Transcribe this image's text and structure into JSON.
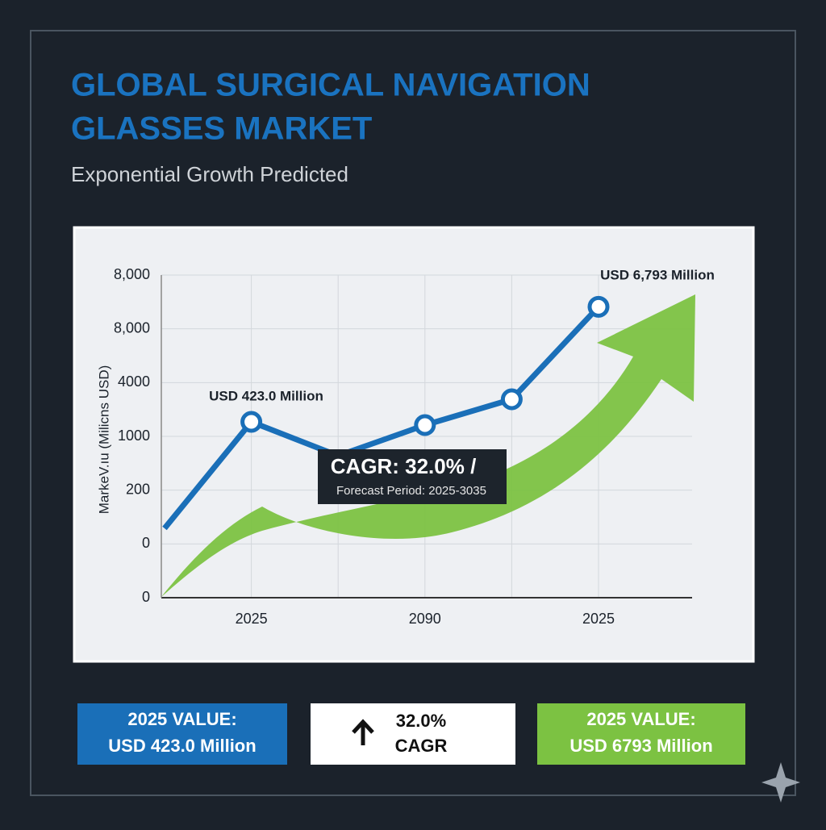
{
  "title_lines": [
    "GLOBAL SURGICAL NAVIGATION",
    "GLASSES MARKET"
  ],
  "subtitle": "Exponential Growth Predicted",
  "chart_data": {
    "type": "line",
    "y_label": "MarkeV.ıu (Milicns USD)",
    "categories": [
      null,
      "2025",
      null,
      "2090",
      null,
      "2025"
    ],
    "values": [
      1.29,
      3.27,
      2.64,
      3.21,
      3.69,
      5.41
    ],
    "color": "#1a6fb8",
    "ylim": [
      0,
      6
    ],
    "yticks": [
      {
        "value": 0,
        "label": "0"
      },
      {
        "value": 1,
        "label": "0"
      },
      {
        "value": 2,
        "label": "200"
      },
      {
        "value": 3,
        "label": "1000"
      },
      {
        "value": 4,
        "label": "4000"
      },
      {
        "value": 5,
        "label": "8,000"
      },
      {
        "value": 6,
        "label": "8,000"
      }
    ],
    "grid": true,
    "annotations": [
      "USD 423.0 Million",
      "USD 6,793 Million"
    ],
    "cagr_box": [
      "CAGR: 32.0% /",
      "Forecast Period: 2025-3035"
    ]
  },
  "cards": [
    {
      "line1": "2025 VALUE:",
      "line2": "USD 423.0 Million"
    },
    {
      "line1": "32.0%",
      "line2": "CAGR"
    },
    {
      "line1": "2025 VALUE:",
      "line2": "USD 6793 Million"
    }
  ]
}
